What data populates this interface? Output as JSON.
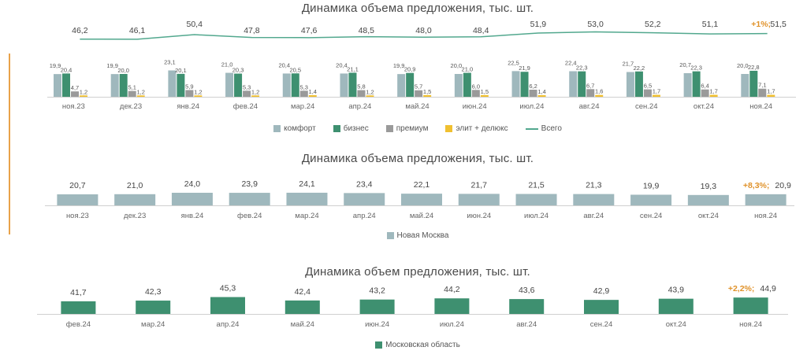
{
  "charts": [
    {
      "title": "Динамика объема предложения, тыс. шт.",
      "legend": [
        {
          "label": "комфорт",
          "color": "#9fb8bd",
          "kind": "bar"
        },
        {
          "label": "бизнес",
          "color": "#3e9070",
          "kind": "bar"
        },
        {
          "label": "премиум",
          "color": "#9a9a9a",
          "kind": "bar"
        },
        {
          "label": "элит + делюкс",
          "color": "#f0c030",
          "kind": "bar"
        },
        {
          "label": "Всего",
          "color": "#52a88e",
          "kind": "line"
        }
      ]
    },
    {
      "title": "Динамика объема предложения, тыс. шт.",
      "legend": [
        {
          "label": "Новая Москва",
          "color": "#9fb8bd",
          "kind": "bar"
        }
      ]
    },
    {
      "title": "Динамика объем предложения, тыс. шт.",
      "legend": [
        {
          "label": "Московская область",
          "color": "#3e9070",
          "kind": "bar"
        }
      ]
    }
  ],
  "chart_data": [
    {
      "type": "bar",
      "title": "Динамика объема предложения, тыс. шт.",
      "categories": [
        "ноя.23",
        "дек.23",
        "янв.24",
        "фев.24",
        "мар.24",
        "апр.24",
        "май.24",
        "июн.24",
        "июл.24",
        "авг.24",
        "сен.24",
        "окт.24",
        "ноя.24"
      ],
      "series": [
        {
          "name": "комфорт",
          "values": [
            19.9,
            19.9,
            23.1,
            21.0,
            20.4,
            20.4,
            19.9,
            20.0,
            22.5,
            22.4,
            21.7,
            20.7,
            20.0
          ],
          "labels": [
            "19,9",
            "19,9",
            "23,1",
            "21,0",
            "20,4",
            "20,4",
            "19,9",
            "20,0",
            "22,5",
            "22,4",
            "21,7",
            "20,7",
            "20,0"
          ],
          "color": "#9fb8bd"
        },
        {
          "name": "бизнес",
          "values": [
            20.4,
            20.0,
            20.1,
            20.3,
            20.5,
            21.1,
            20.9,
            21.0,
            21.9,
            22.3,
            22.2,
            22.3,
            22.8
          ],
          "labels": [
            "20,4",
            "20,0",
            "20,1",
            "20,3",
            "20,5",
            "21,1",
            "20,9",
            "21,0",
            "21,9",
            "22,3",
            "22,2",
            "22,3",
            "22,8"
          ],
          "color": "#3e9070"
        },
        {
          "name": "премиум",
          "values": [
            4.7,
            5.1,
            5.9,
            5.3,
            5.3,
            5.8,
            5.7,
            6.0,
            6.2,
            6.7,
            6.5,
            6.4,
            7.1
          ],
          "labels": [
            "4,7",
            "5,1",
            "5,9",
            "5,3",
            "5,3",
            "5,8",
            "5,7",
            "6,0",
            "6,2",
            "6,7",
            "6,5",
            "6,4",
            "7,1"
          ],
          "color": "#9a9a9a"
        },
        {
          "name": "элит + делюкс",
          "values": [
            1.2,
            1.2,
            1.2,
            1.2,
            1.4,
            1.2,
            1.5,
            1.5,
            1.4,
            1.6,
            1.7,
            1.7,
            1.7
          ],
          "labels": [
            "1,2",
            "1,2",
            "1,2",
            "1,2",
            "1,4",
            "1,2",
            "1,5",
            "1,5",
            "1,4",
            "1,6",
            "1,7",
            "1,7",
            "1,7"
          ],
          "color": "#f0c030"
        },
        {
          "name": "Всего",
          "type": "line",
          "values": [
            46.2,
            46.1,
            50.4,
            47.8,
            47.6,
            48.5,
            48.0,
            48.4,
            51.9,
            53.0,
            52.2,
            51.1,
            51.5
          ],
          "labels": [
            "46,2",
            "46,1",
            "50,4",
            "47,8",
            "47,6",
            "48,5",
            "48,0",
            "48,4",
            "51,9",
            "53,0",
            "52,2",
            "51,1",
            "51,5"
          ],
          "color": "#52a88e"
        }
      ],
      "annotation": {
        "category": "ноя.24",
        "text": "+1%;",
        "color": "#e0922a"
      },
      "legend_position": "bottom",
      "grid": false
    },
    {
      "type": "bar",
      "title": "Динамика объема предложения, тыс. шт.",
      "categories": [
        "ноя.23",
        "дек.23",
        "янв.24",
        "фев.24",
        "мар.24",
        "апр.24",
        "май.24",
        "июн.24",
        "июл.24",
        "авг.24",
        "сен.24",
        "окт.24",
        "ноя.24"
      ],
      "series": [
        {
          "name": "Новая Москва",
          "values": [
            20.7,
            21.0,
            24.0,
            23.9,
            24.1,
            23.4,
            22.1,
            21.7,
            21.5,
            21.3,
            19.9,
            19.3,
            20.9
          ],
          "labels": [
            "20,7",
            "21,0",
            "24,0",
            "23,9",
            "24,1",
            "23,4",
            "22,1",
            "21,7",
            "21,5",
            "21,3",
            "19,9",
            "19,3",
            "20,9"
          ],
          "color": "#9fb8bd"
        }
      ],
      "annotation": {
        "category": "ноя.24",
        "text": "+8,3%;",
        "color": "#e0922a"
      },
      "legend_position": "bottom",
      "grid": false
    },
    {
      "type": "bar",
      "title": "Динамика объем предложения, тыс. шт.",
      "categories": [
        "фев.24",
        "мар.24",
        "апр.24",
        "май.24",
        "июн.24",
        "июл.24",
        "авг.24",
        "сен.24",
        "окт.24",
        "ноя.24"
      ],
      "series": [
        {
          "name": "Московская область",
          "values": [
            41.7,
            42.3,
            45.3,
            42.4,
            43.2,
            44.2,
            43.6,
            42.9,
            43.9,
            44.9
          ],
          "labels": [
            "41,7",
            "42,3",
            "45,3",
            "42,4",
            "43,2",
            "44,2",
            "43,6",
            "42,9",
            "43,9",
            "44,9"
          ],
          "color": "#3e9070"
        }
      ],
      "annotation": {
        "category": "ноя.24",
        "text": "+2,2%;",
        "color": "#e0922a"
      },
      "legend_position": "bottom",
      "grid": false
    }
  ]
}
